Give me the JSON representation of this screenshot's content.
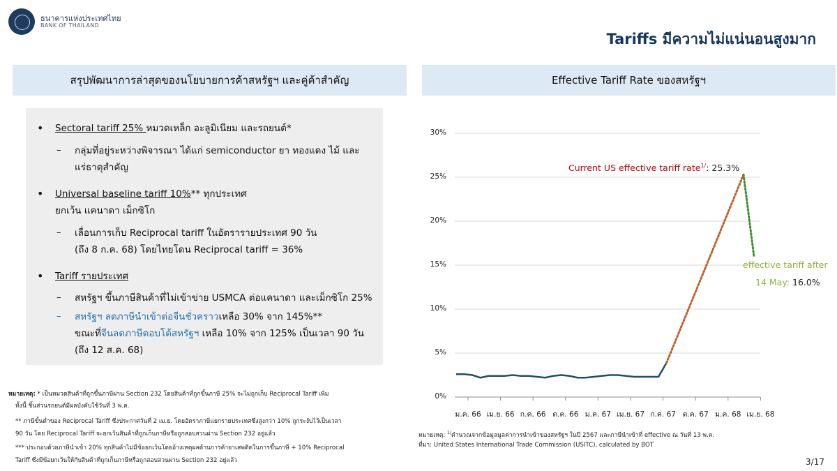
{
  "header": {
    "bank_name_th": "ธนาคารแห่งประเทศไทย",
    "bank_name_en": "BANK OF THAILAND",
    "title": "Tariffs มีความไม่แน่นอนสูงมาก"
  },
  "left_panel": {
    "title": "สรุปพัฒนาการล่าสุดของนโยบายการค้าสหรัฐฯ และคู่ค้าสำคัญ",
    "bullet1": {
      "underlined": "Sectoral tariff 25% ",
      "rest": "หมวดเหล็ก อะลูมิเนียม และรถยนต์*",
      "sub1_line1": "กลุ่มที่อยู่ระหว่างพิจารณา ได้แก่ semiconductor ยา ทองแดง ไม้ และ",
      "sub1_line2": "แร่ธาตุสำคัญ"
    },
    "bullet2": {
      "underlined": "Universal baseline tariff 10%",
      "rest": "** ทุกประเทศ",
      "line2": "ยกเว้น แคนาดา เม็กซิโก",
      "sub1_line1": "เลื่อนการเก็บ Reciprocal tariff ในอัตรารายประเทศ 90 วัน",
      "sub1_line2": "(ถึง 8 ก.ค. 68) โดยไทยโดน Reciprocal tariff = 36%"
    },
    "bullet3": {
      "underlined": "Tariff รายประเทศ",
      "sub1": "สหรัฐฯ ขึ้นภาษีสินค้าที่ไม่เข้าข่าย USMCA ต่อแคนาดา และเม็กซิโก 25%",
      "sub2_blue": "สหรัฐฯ ลดภาษีนำเข้าต่อจีนชั่วคราว",
      "sub2_rest": "เหลือ 30% จาก 145%**",
      "sub2_line2_a": "ขณะที่",
      "sub2_line2_blue": "จีนลดภาษีตอบโต้สหรัฐฯ",
      "sub2_line2_b": " เหลือ 10% จาก 125% เป็นเวลา 90 วัน",
      "sub2_line3": "(ถึง 12 ส.ค. 68)"
    }
  },
  "left_notes": {
    "label": "หมายเหตุ:",
    "line1": " * เป็นหมวดสินค้าที่ถูกขึ้นภาษีผ่าน Section 232 โดยสินค้าที่ถูกขึ้นภาษี 25% จะไม่ถูกเก็บ Reciprocal Tariff เพิ่ม",
    "line2": "ทั้งนี้ ชิ้นส่วนรถยนต์มีผลบังคับใช้วันที่ 3 พ.ค.",
    "line3": "** ภาษีขั้นต่ำของ Reciprocal Tariff ซึ่งประกาศวันที่ 2 เม.ย. โดยอัตราภาษีแยกรายประเทศซึ่งสูงกว่า 10% ถูกระงับไว้เป็นเวลา",
    "line4": "90 วัน โดย Reciprocal Tariff จะยกเว้นสินค้าที่ถูกเก็บภาษีหรือถูกสอบสวนผ่าน Section 232 อยู่แล้ว",
    "line5": "*** ประกอบด้วยภาษีนำเข้า 20% ทุกสินค้าไม่มีข้อยกเว้นโดยอ้างเหตุผลด้านการค้ายาเสพติดในการขึ้นภาษี + 10% Reciprocal",
    "line6": "Tariff ซึ่งมีข้อยกเว้นให้กับสินค้าที่ถูกเก็บภาษีหรือถูกสอบสวนผ่าน Section 232 อยู่แล้ว"
  },
  "right_panel": {
    "title": "Effective Tariff Rate ของสหรัฐฯ"
  },
  "chart_data": {
    "type": "line",
    "title": "Effective Tariff Rate ของสหรัฐฯ",
    "ylim": [
      0,
      30
    ],
    "yticks": [
      "0%",
      "5%",
      "10%",
      "15%",
      "20%",
      "25%",
      "30%"
    ],
    "xtick_labels": [
      "ม.ค. 66",
      "เม.ย. 66",
      "ก.ค. 66",
      "ต.ค. 66",
      "ม.ค. 67",
      "เม.ย. 67",
      "ก.ค. 67",
      "ต.ค. 67",
      "ม.ค. 68",
      "เม.ย. 68"
    ],
    "grid": true,
    "series": [
      {
        "style": "solid",
        "color": "#1f4e6b",
        "x": [
          "ม.ค. 66",
          "ก.พ. 66",
          "มี.ค. 66",
          "เม.ย. 66",
          "พ.ค. 66",
          "มิ.ย. 66",
          "ก.ค. 66",
          "ส.ค. 66",
          "ก.ย. 66",
          "ต.ค. 66",
          "พ.ย. 66",
          "ธ.ค. 66",
          "ม.ค. 67",
          "ก.พ. 67",
          "มี.ค. 67",
          "เม.ย. 67",
          "พ.ค. 67",
          "มิ.ย. 67",
          "ก.ค. 67",
          "ส.ค. 67",
          "ก.ย. 67",
          "ต.ค. 67",
          "พ.ย. 67",
          "ธ.ค. 67",
          "ม.ค. 68",
          "ก.พ. 68",
          "มี.ค. 68"
        ],
        "values": [
          2.6,
          2.6,
          2.5,
          2.2,
          2.4,
          2.4,
          2.4,
          2.5,
          2.4,
          2.4,
          2.3,
          2.2,
          2.4,
          2.5,
          2.4,
          2.2,
          2.2,
          2.3,
          2.4,
          2.5,
          2.5,
          2.4,
          2.3,
          2.3,
          2.3,
          2.3,
          3.9
        ]
      },
      {
        "style": "dotted",
        "color": "#c0622b",
        "x": [
          "มี.ค. 68",
          "เม.ย. 68"
        ],
        "values": [
          3.9,
          25.3
        ]
      },
      {
        "style": "dotted",
        "color": "#3e8e2f",
        "x": [
          "เม.ย. 68",
          "พ.ค. 68"
        ],
        "values": [
          25.3,
          16.0
        ]
      }
    ],
    "annotations": {
      "current_label": "Current US effective tariff rate",
      "current_sup": "1/",
      "current_value": ": 25.3%",
      "after_line1": "effective tariff after",
      "after_line2": "14 May: ",
      "after_value": "16.0%"
    },
    "colors": {
      "current_label": "#c00000",
      "after_label": "#8db33a"
    }
  },
  "right_notes": {
    "line1_a": "หมายเหตุ: ",
    "line1_sup": "1/",
    "line1_b": "คำนวณจากข้อมูลมูลค่าการนำเข้าของสหรัฐฯ ในปี 2567 และภาษีนำเข้าที่ effective ณ วันที่ 13 พ.ค.",
    "line2": "ที่มา: United States International Trade Commission (USITC), calculated by BOT"
  },
  "footer": {
    "page_number": "3/17"
  }
}
